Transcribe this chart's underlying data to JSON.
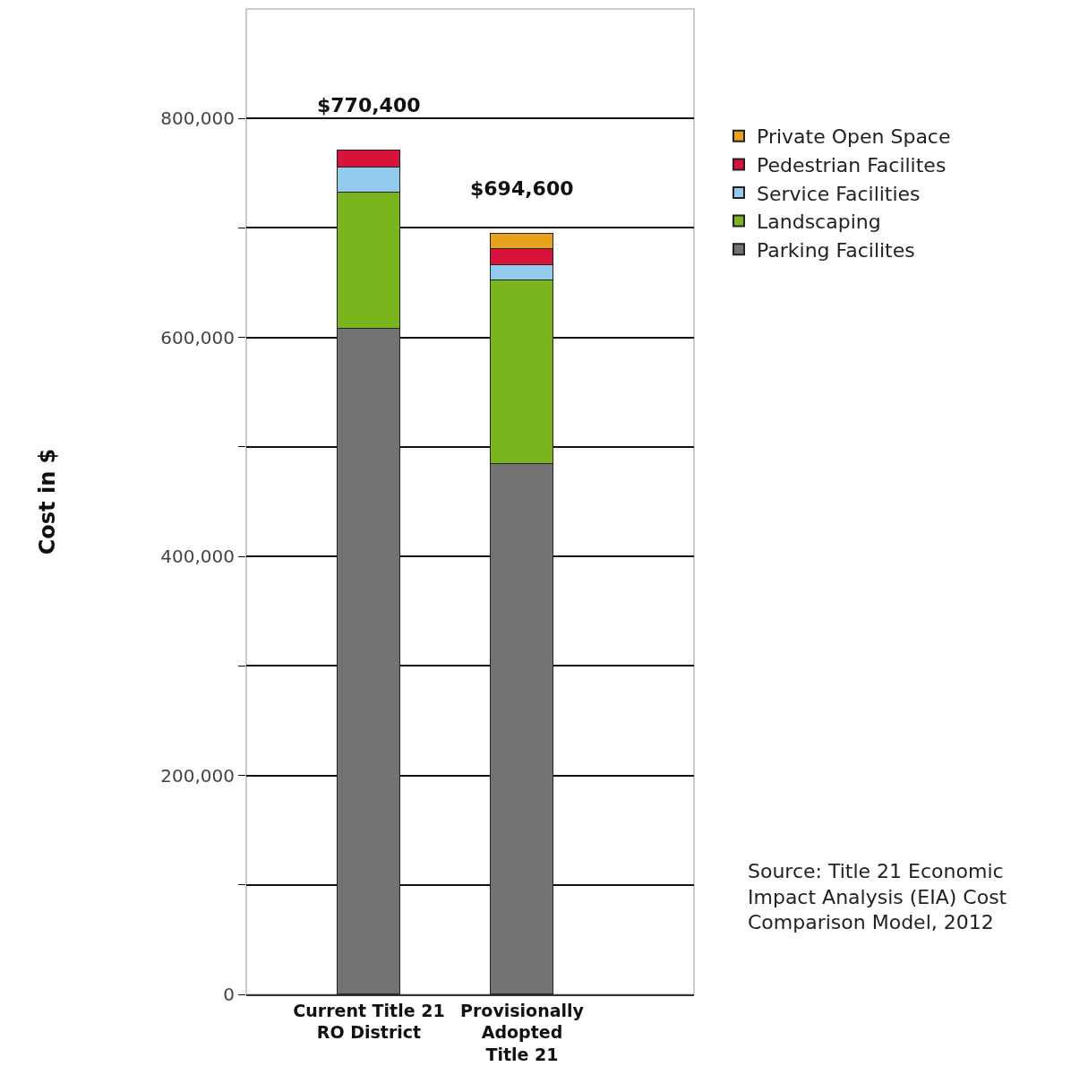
{
  "chart_data": {
    "type": "bar",
    "stacked": true,
    "ylabel": "Cost in $",
    "categories": [
      "Current Title 21\nRO District",
      "Provisionally\nAdopted\nTitle 21"
    ],
    "series": [
      {
        "name": "Parking Facilites",
        "color": "#737373",
        "values": [
          608000,
          484000
        ]
      },
      {
        "name": "Landscaping",
        "color": "#7ab51d",
        "values": [
          124000,
          168000
        ]
      },
      {
        "name": "Service Facilities",
        "color": "#92cbeb",
        "values": [
          23000,
          14000
        ]
      },
      {
        "name": "Pedestrian Facilites",
        "color": "#d7133a",
        "values": [
          15400,
          15000
        ]
      },
      {
        "name": "Private Open Space",
        "color": "#e8a21a",
        "values": [
          null,
          13600
        ]
      }
    ],
    "totals": [
      "$770,400",
      "$694,600"
    ],
    "ylim": [
      0,
      900000
    ],
    "yticks": [
      0,
      {
        "value": 100000,
        "label": null
      },
      {
        "value": 200000,
        "label": "200,000"
      },
      {
        "value": 300000,
        "label": null
      },
      {
        "value": 400000,
        "label": "400,000"
      },
      {
        "value": 500000,
        "label": null
      },
      {
        "value": 600000,
        "label": "600,000"
      },
      {
        "value": 700000,
        "label": null
      },
      {
        "value": 800000,
        "label": "800,000"
      }
    ],
    "grid": "y",
    "legend": "top right",
    "annotations": [
      "Source: Title 21 Economic\nImpact Analysis (EIA) Cost\nComparison Model, 2012"
    ]
  }
}
